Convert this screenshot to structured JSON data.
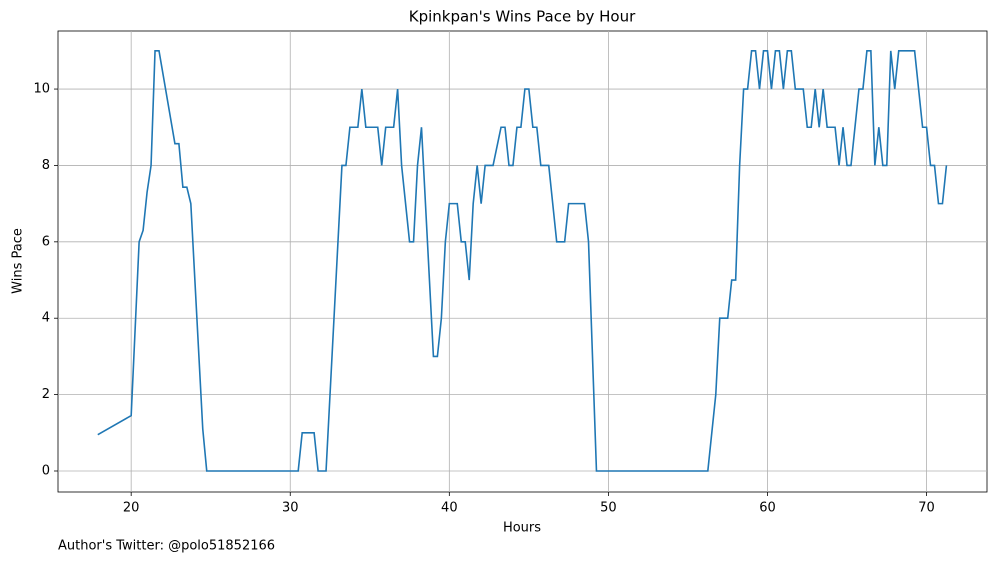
{
  "chart_data": {
    "type": "line",
    "title": "Kpinkpan's Wins Pace by Hour",
    "x_label": "Hours",
    "y_label": "Wins Pace",
    "note": "Author's Twitter: @polo51852166",
    "grid": true,
    "xlim": [
      15.4,
      73.8
    ],
    "ylim": [
      -0.55,
      11.52
    ],
    "xticks": [
      20,
      30,
      40,
      50,
      60,
      70
    ],
    "yticks": [
      0,
      2,
      4,
      6,
      8,
      10
    ],
    "series": [
      {
        "name": "Wins Pace",
        "color": "#1f77b4",
        "x": [
          17.9,
          20,
          20.5,
          20.75,
          21,
          21.25,
          21.5,
          21.75,
          22.75,
          23,
          23.25,
          23.5,
          23.75,
          24.5,
          24.75,
          30.5,
          30.75,
          31.5,
          31.75,
          32.25,
          33.25,
          33.5,
          33.75,
          34.25,
          34.5,
          34.75,
          35.5,
          35.75,
          36,
          36.5,
          36.75,
          37,
          37.5,
          37.75,
          38,
          38.25,
          38.5,
          38.75,
          39,
          39.25,
          39.5,
          39.75,
          40,
          40.5,
          40.75,
          41,
          41.25,
          41.5,
          41.75,
          42,
          42.25,
          42.75,
          43.25,
          43.5,
          43.75,
          44,
          44.25,
          44.5,
          44.75,
          45,
          45.25,
          45.5,
          45.75,
          46.25,
          46.75,
          47.25,
          47.5,
          48.5,
          48.75,
          49.25,
          56.25,
          56.75,
          57,
          57.5,
          57.75,
          58,
          58.25,
          58.5,
          58.75,
          59,
          59.25,
          59.5,
          59.75,
          60,
          60.25,
          60.5,
          60.75,
          61,
          61.25,
          61.5,
          61.75,
          62.25,
          62.5,
          62.75,
          63,
          63.25,
          63.5,
          63.75,
          64.25,
          64.5,
          64.75,
          65,
          65.25,
          65.5,
          65.75,
          66,
          66.25,
          66.5,
          66.75,
          67,
          67.25,
          67.5,
          67.75,
          68,
          68.25,
          69.25,
          69.75,
          70,
          70.25,
          70.5,
          70.75,
          71,
          71.25
        ],
        "values": [
          0.95,
          1.45,
          6,
          6.3,
          7.3,
          8,
          11,
          11,
          8.57,
          8.57,
          7.43,
          7.43,
          7,
          1.1,
          0,
          0,
          1,
          1,
          0,
          0,
          8,
          8,
          9,
          9,
          10,
          9,
          9,
          8,
          9,
          9,
          10,
          8,
          6,
          6,
          8,
          9,
          7,
          5,
          3,
          3,
          4,
          6,
          7,
          7,
          6,
          6,
          5,
          7,
          8,
          7,
          8,
          8,
          9,
          9,
          8,
          8,
          9,
          9,
          10,
          10,
          9,
          9,
          8,
          8,
          6,
          6,
          7,
          7,
          6,
          0,
          0,
          2,
          4,
          4,
          5,
          5,
          8,
          10,
          10,
          11,
          11,
          10,
          11,
          11,
          10,
          11,
          11,
          10,
          11,
          11,
          10,
          10,
          9,
          9,
          10,
          9,
          10,
          9,
          9,
          8,
          9,
          8,
          8,
          9,
          10,
          10,
          11,
          11,
          8,
          9,
          8,
          8,
          11,
          10,
          11,
          11,
          9,
          9,
          8,
          8,
          7,
          7,
          8
        ]
      }
    ]
  }
}
